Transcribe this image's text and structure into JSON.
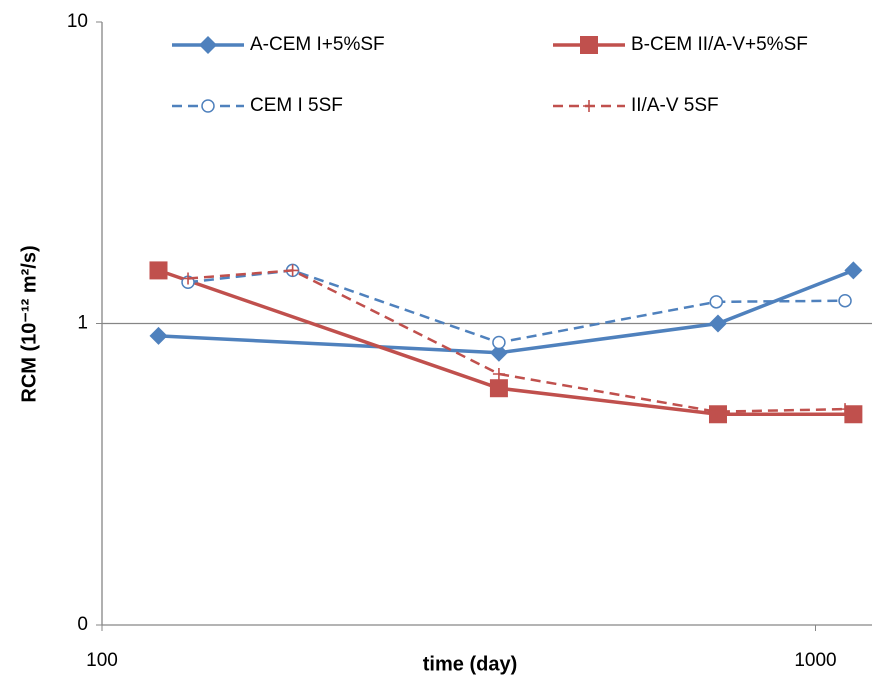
{
  "chart_data": {
    "type": "line",
    "xlabel": "time (day)",
    "ylabel": "RCM  (10⁻¹² m²/s)",
    "xscale": "log",
    "yscale": "log",
    "xlim": [
      100,
      1200
    ],
    "xticks": [
      100,
      1000
    ],
    "ylim": [
      0.1,
      10
    ],
    "yticks": [
      {
        "value": 0.1,
        "label": "0"
      },
      1,
      10
    ],
    "grid": true,
    "series": [
      {
        "name": "A-CEM I+5%SF",
        "color": "#4f81bd",
        "style": "solid",
        "marker": "diamond",
        "x": [
          120,
          360,
          730,
          1130
        ],
        "values": [
          0.91,
          0.8,
          1,
          1.5
        ]
      },
      {
        "name": "B-CEM II/A-V+5%SF",
        "color": "#c0504d",
        "style": "solid",
        "marker": "square",
        "x": [
          120,
          360,
          730,
          1130
        ],
        "values": [
          1.5,
          0.61,
          0.5,
          0.5
        ]
      },
      {
        "name": "CEM I 5SF",
        "color": "#4f81bd",
        "style": "dashed",
        "marker": "circle",
        "x": [
          132,
          185,
          360,
          726,
          1100
        ],
        "values": [
          1.37,
          1.5,
          0.865,
          1.18,
          1.19
        ]
      },
      {
        "name": "II/A-V 5SF",
        "color": "#c0504d",
        "style": "dashed",
        "marker": "plus",
        "x": [
          132,
          185,
          360,
          726,
          1100
        ],
        "values": [
          1.41,
          1.5,
          0.68,
          0.51,
          0.52
        ]
      }
    ]
  }
}
